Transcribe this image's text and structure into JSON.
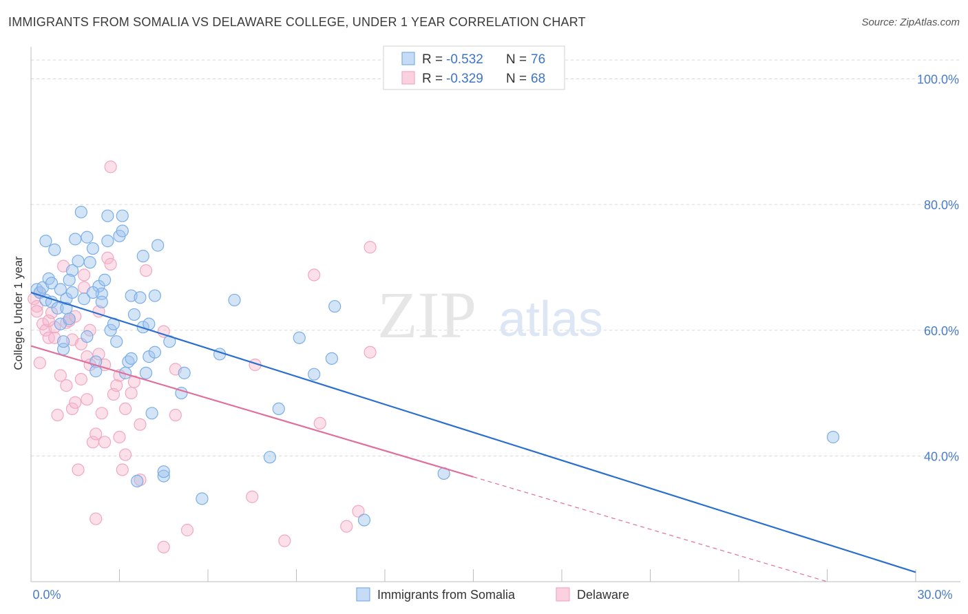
{
  "title": "IMMIGRANTS FROM SOMALIA VS DELAWARE COLLEGE, UNDER 1 YEAR CORRELATION CHART",
  "source": "Source: ZipAtlas.com",
  "watermark": {
    "zip": "ZIP",
    "atlas": "atlas"
  },
  "colors": {
    "blue": "#7aaee8",
    "blue_line": "#2b6fce",
    "pink": "#f2a7c0",
    "pink_line": "#e0709b",
    "grid": "#d8d8d8",
    "axis_label": "#4a7cc9"
  },
  "legend": {
    "r_label": "R =",
    "n_label": "N =",
    "series": [
      {
        "r": "-0.532",
        "n": "76"
      },
      {
        "r": "-0.329",
        "n": "68"
      }
    ]
  },
  "bottom_legend": [
    "Immigrants from Somalia",
    "Delaware"
  ],
  "chart_data": {
    "type": "scatter",
    "title": "IMMIGRANTS FROM SOMALIA VS DELAWARE COLLEGE, UNDER 1 YEAR CORRELATION CHART",
    "xlabel": "",
    "ylabel": "College, Under 1 year",
    "xlim": [
      0,
      30
    ],
    "ylim": [
      20,
      104
    ],
    "x_tick_labels": [
      "0.0%",
      "30.0%"
    ],
    "y_ticks": [
      40,
      60,
      80,
      100
    ],
    "y_tick_labels": [
      "40.0%",
      "60.0%",
      "80.0%",
      "100.0%"
    ],
    "grid": true,
    "series": [
      {
        "name": "Immigrants from Somalia",
        "r": -0.532,
        "n": 76,
        "trend": {
          "x0": 0,
          "y0": 66.0,
          "x1": 30,
          "y1": 21.5,
          "dashed_from": null
        },
        "points": [
          [
            0.2,
            66.5
          ],
          [
            0.3,
            66.0
          ],
          [
            0.4,
            66.8
          ],
          [
            0.5,
            74.2
          ],
          [
            0.5,
            64.8
          ],
          [
            0.6,
            68.2
          ],
          [
            0.7,
            67.5
          ],
          [
            0.7,
            64.5
          ],
          [
            0.8,
            72.8
          ],
          [
            0.9,
            63.5
          ],
          [
            1.0,
            66.5
          ],
          [
            1.0,
            61.0
          ],
          [
            1.1,
            57.0
          ],
          [
            1.1,
            58.2
          ],
          [
            1.2,
            65.0
          ],
          [
            1.2,
            63.5
          ],
          [
            1.3,
            61.8
          ],
          [
            1.4,
            66.0
          ],
          [
            1.4,
            69.5
          ],
          [
            1.5,
            74.5
          ],
          [
            1.6,
            71.0
          ],
          [
            1.7,
            78.8
          ],
          [
            1.8,
            65.0
          ],
          [
            1.9,
            74.8
          ],
          [
            1.9,
            59.0
          ],
          [
            2.0,
            70.8
          ],
          [
            2.1,
            73.0
          ],
          [
            2.2,
            55.0
          ],
          [
            2.2,
            53.5
          ],
          [
            2.3,
            67.0
          ],
          [
            2.4,
            65.8
          ],
          [
            2.4,
            64.5
          ],
          [
            2.5,
            68.0
          ],
          [
            2.6,
            74.2
          ],
          [
            2.6,
            78.2
          ],
          [
            2.7,
            60.0
          ],
          [
            2.8,
            61.0
          ],
          [
            2.9,
            58.2
          ],
          [
            3.0,
            75.0
          ],
          [
            3.1,
            78.2
          ],
          [
            3.1,
            75.8
          ],
          [
            3.2,
            53.2
          ],
          [
            3.3,
            55.0
          ],
          [
            3.4,
            55.5
          ],
          [
            3.4,
            65.5
          ],
          [
            3.5,
            62.5
          ],
          [
            3.6,
            36.0
          ],
          [
            3.7,
            65.2
          ],
          [
            3.8,
            60.5
          ],
          [
            3.8,
            71.8
          ],
          [
            3.9,
            53.2
          ],
          [
            4.0,
            61.0
          ],
          [
            4.0,
            55.8
          ],
          [
            4.1,
            46.8
          ],
          [
            4.2,
            65.5
          ],
          [
            4.2,
            56.5
          ],
          [
            4.3,
            73.5
          ],
          [
            4.5,
            36.8
          ],
          [
            4.5,
            37.5
          ],
          [
            4.7,
            58.2
          ],
          [
            5.1,
            50.0
          ],
          [
            5.2,
            53.2
          ],
          [
            5.8,
            33.2
          ],
          [
            6.4,
            56.2
          ],
          [
            6.9,
            64.8
          ],
          [
            8.1,
            39.8
          ],
          [
            8.4,
            47.5
          ],
          [
            9.1,
            58.8
          ],
          [
            9.6,
            53.0
          ],
          [
            10.2,
            55.5
          ],
          [
            10.3,
            63.8
          ],
          [
            11.3,
            29.8
          ],
          [
            14.0,
            37.2
          ],
          [
            27.2,
            43.0
          ],
          [
            2.1,
            66.0
          ],
          [
            1.3,
            68.0
          ]
        ]
      },
      {
        "name": "Delaware",
        "r": -0.329,
        "n": 68,
        "trend": {
          "x0": 0,
          "y0": 57.5,
          "x1": 27.0,
          "y1": 20.0,
          "dashed_from": 15.0
        },
        "points": [
          [
            0.1,
            65.0
          ],
          [
            0.2,
            63.8
          ],
          [
            0.2,
            63.0
          ],
          [
            0.3,
            54.8
          ],
          [
            0.4,
            61.0
          ],
          [
            0.5,
            60.0
          ],
          [
            0.6,
            58.8
          ],
          [
            0.7,
            62.8
          ],
          [
            0.8,
            58.8
          ],
          [
            0.8,
            60.5
          ],
          [
            0.9,
            46.5
          ],
          [
            1.0,
            52.8
          ],
          [
            1.1,
            70.2
          ],
          [
            1.2,
            61.2
          ],
          [
            1.2,
            51.2
          ],
          [
            1.3,
            61.5
          ],
          [
            1.4,
            47.5
          ],
          [
            1.4,
            58.5
          ],
          [
            1.5,
            48.5
          ],
          [
            1.6,
            37.8
          ],
          [
            1.7,
            52.2
          ],
          [
            1.7,
            57.8
          ],
          [
            1.8,
            68.8
          ],
          [
            1.8,
            66.8
          ],
          [
            1.9,
            49.0
          ],
          [
            1.9,
            55.8
          ],
          [
            2.0,
            54.5
          ],
          [
            2.1,
            42.2
          ],
          [
            2.2,
            43.5
          ],
          [
            2.2,
            30.0
          ],
          [
            2.3,
            56.2
          ],
          [
            2.3,
            63.0
          ],
          [
            2.4,
            46.8
          ],
          [
            2.5,
            42.2
          ],
          [
            2.5,
            54.5
          ],
          [
            2.6,
            71.5
          ],
          [
            2.7,
            70.5
          ],
          [
            2.7,
            86.0
          ],
          [
            2.8,
            49.8
          ],
          [
            2.9,
            51.2
          ],
          [
            3.0,
            52.8
          ],
          [
            3.0,
            43.0
          ],
          [
            3.1,
            37.8
          ],
          [
            3.2,
            40.2
          ],
          [
            3.2,
            47.5
          ],
          [
            3.4,
            50.0
          ],
          [
            3.5,
            51.8
          ],
          [
            3.7,
            36.2
          ],
          [
            3.7,
            45.0
          ],
          [
            3.9,
            69.5
          ],
          [
            4.5,
            25.5
          ],
          [
            4.5,
            59.8
          ],
          [
            4.9,
            53.8
          ],
          [
            4.9,
            46.5
          ],
          [
            5.3,
            28.2
          ],
          [
            7.5,
            33.5
          ],
          [
            7.6,
            54.5
          ],
          [
            8.6,
            26.5
          ],
          [
            9.6,
            68.8
          ],
          [
            9.8,
            45.2
          ],
          [
            10.7,
            28.8
          ],
          [
            11.1,
            31.2
          ],
          [
            11.5,
            73.2
          ],
          [
            11.5,
            56.5
          ],
          [
            0.6,
            61.5
          ],
          [
            1.5,
            62.2
          ],
          [
            0.3,
            66.0
          ],
          [
            2.0,
            60.0
          ]
        ]
      }
    ]
  }
}
